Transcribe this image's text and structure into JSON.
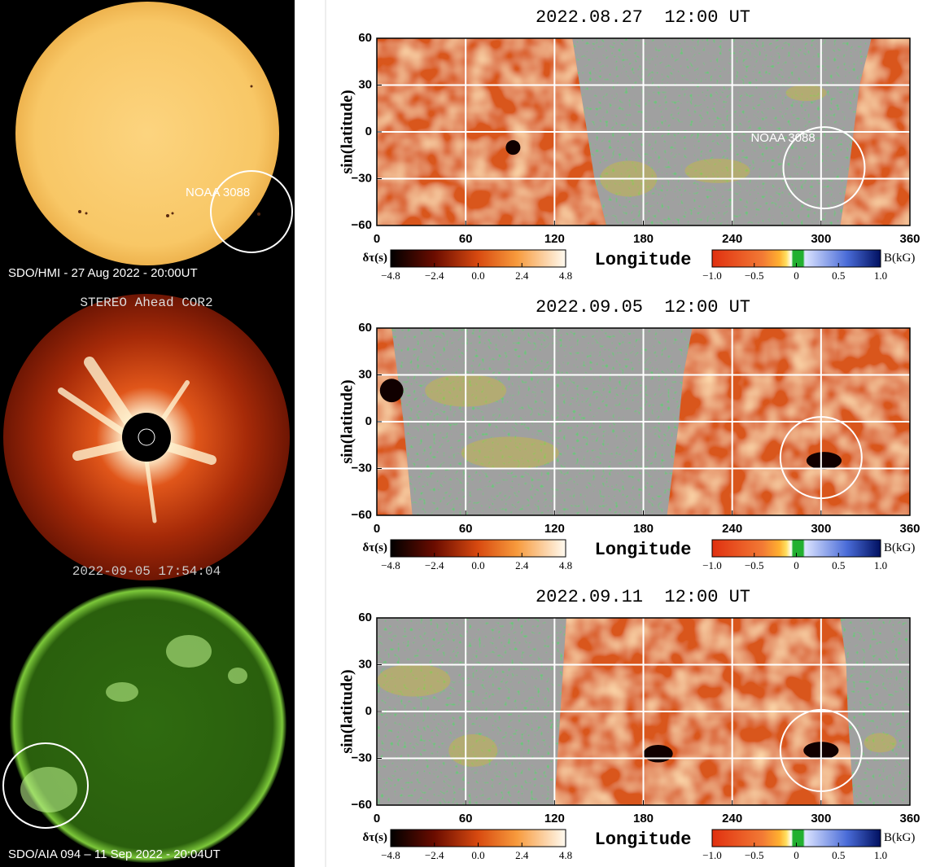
{
  "left": [
    {
      "caption": "SDO/HMI - 27 Aug 2022 - 20:00UT",
      "annotation": "NOAA 3088"
    },
    {
      "title": "STEREO Ahead COR2",
      "caption": "2022-09-05 17:54:04"
    },
    {
      "caption": "SDO/AIA 094 – 11 Sep 2022 - 20:04UT"
    }
  ],
  "maps": [
    {
      "title": "2022.08.27  12:00 UT",
      "annotation": "NOAA 3088"
    },
    {
      "title": "2022.09.05  12:00 UT"
    },
    {
      "title": "2022.09.11  12:00 UT"
    }
  ],
  "axes": {
    "xlabel": "Longitude",
    "ylabel": "sin(latitude)",
    "xlim": [
      0,
      360
    ],
    "xticks": [
      0,
      60,
      120,
      180,
      240,
      300,
      360
    ],
    "ylim": [
      -60,
      60
    ],
    "yticks": [
      60,
      30,
      0,
      {
        "value": -30,
        "label": "−30"
      },
      {
        "value": -60,
        "label": "−60"
      }
    ]
  },
  "colorbars": {
    "dtau": {
      "label": "δτ(s)",
      "lim": [
        -4.8,
        4.8
      ],
      "ticks": [
        {
          "value": -4.8,
          "label": "−4.8"
        },
        {
          "value": -2.4,
          "label": "−2.4"
        },
        {
          "value": 0,
          "label": "0.0"
        },
        2.4,
        4.8
      ]
    },
    "b": {
      "label": "B(kG)",
      "lim": [
        -1,
        1
      ],
      "ticks": [
        {
          "value": -1,
          "label": "−1.0"
        },
        {
          "value": -0.5,
          "label": "−0.5"
        },
        0,
        0.5,
        {
          "value": 1,
          "label": "1.0"
        }
      ]
    }
  }
}
